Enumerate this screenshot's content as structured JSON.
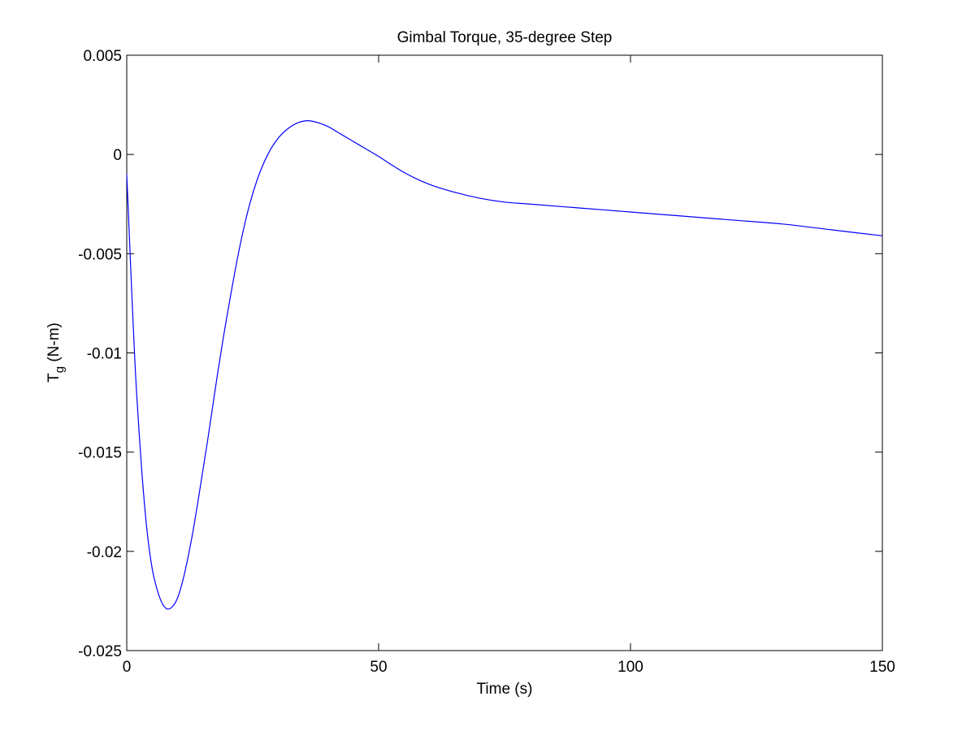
{
  "chart_data": {
    "type": "line",
    "title": "Gimbal Torque, 35-degree Step",
    "xlabel": "Time (s)",
    "ylabel": {
      "main": "T",
      "subscript": "g",
      "unit": "(N-m)"
    },
    "xlim": [
      0,
      150
    ],
    "ylim": [
      -0.025,
      0.005
    ],
    "xticks": [
      0,
      50,
      100,
      150
    ],
    "xtick_labels": [
      "0",
      "50",
      "100",
      "150"
    ],
    "yticks": [
      0.005,
      0,
      -0.005,
      -0.01,
      -0.015,
      -0.02,
      -0.025
    ],
    "ytick_labels": [
      "0.005",
      "0",
      "-0.005",
      "-0.01",
      "-0.015",
      "-0.02",
      "-0.025"
    ],
    "grid": false,
    "legend": null,
    "series": [
      {
        "color": "#0000ff",
        "x": [
          0,
          0.5,
          1,
          1.5,
          2,
          3,
          4,
          5,
          6,
          7,
          8,
          9,
          10,
          11,
          12,
          13,
          14,
          15,
          16,
          17,
          18,
          19,
          20,
          22,
          24,
          26,
          28,
          30,
          32,
          34,
          36,
          38,
          40,
          42,
          44,
          46,
          48,
          50,
          55,
          60,
          65,
          70,
          75,
          80,
          90,
          100,
          110,
          120,
          130,
          140,
          150
        ],
        "y": [
          -0.001,
          -0.004,
          -0.007,
          -0.0098,
          -0.0122,
          -0.016,
          -0.0189,
          -0.0208,
          -0.0219,
          -0.0226,
          -0.0229,
          -0.0228,
          -0.0224,
          -0.0216,
          -0.0205,
          -0.0192,
          -0.0177,
          -0.0161,
          -0.0145,
          -0.0128,
          -0.0111,
          -0.0095,
          -0.008,
          -0.0052,
          -0.0029,
          -0.0012,
          0.0,
          0.0008,
          0.0013,
          0.0016,
          0.0017,
          0.0016,
          0.0014,
          0.0011,
          0.0008,
          0.0005,
          0.0002,
          -0.0001,
          -0.0009,
          -0.0015,
          -0.0019,
          -0.0022,
          -0.0024,
          -0.0025,
          -0.0027,
          -0.0029,
          -0.0031,
          -0.0033,
          -0.0035,
          -0.0038,
          -0.0041
        ]
      }
    ]
  }
}
